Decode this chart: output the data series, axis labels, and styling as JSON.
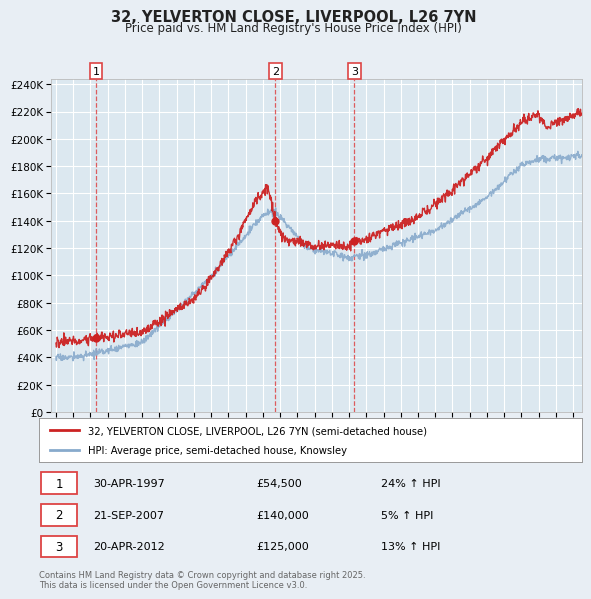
{
  "title": "32, YELVERTON CLOSE, LIVERPOOL, L26 7YN",
  "subtitle": "Price paid vs. HM Land Registry's House Price Index (HPI)",
  "legend_label_red": "32, YELVERTON CLOSE, LIVERPOOL, L26 7YN (semi-detached house)",
  "legend_label_blue": "HPI: Average price, semi-detached house, Knowsley",
  "footnote": "Contains HM Land Registry data © Crown copyright and database right 2025.\nThis data is licensed under the Open Government Licence v3.0.",
  "sales": [
    {
      "num": 1,
      "date": "30-APR-1997",
      "price": 54500,
      "hpi_rel": "24% ↑ HPI"
    },
    {
      "num": 2,
      "date": "21-SEP-2007",
      "price": 140000,
      "hpi_rel": "5% ↑ HPI"
    },
    {
      "num": 3,
      "date": "20-APR-2012",
      "price": 125000,
      "hpi_rel": "13% ↑ HPI"
    }
  ],
  "sale_years": [
    1997.33,
    2007.72,
    2012.31
  ],
  "ylim": [
    0,
    244000
  ],
  "xlim_start": 1994.7,
  "xlim_end": 2025.5,
  "bg_color": "#e8eef4",
  "plot_bg_color": "#dce8f0",
  "red_color": "#cc2222",
  "blue_color": "#88aacc",
  "grid_color": "#ffffff",
  "dashed_color": "#dd4444"
}
